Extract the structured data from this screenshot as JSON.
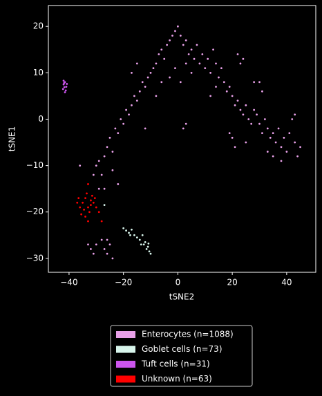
{
  "chart_data": {
    "type": "scatter",
    "xlabel": "tSNE2",
    "ylabel": "tSNE1",
    "xlim": [
      -47.6,
      50.7
    ],
    "ylim": [
      -33.0,
      24.5
    ],
    "xticks": [
      {
        "value": -40,
        "label": "−40"
      },
      {
        "value": -20,
        "label": "−20"
      },
      0,
      20,
      40
    ],
    "yticks": [
      {
        "value": -30,
        "label": "−30"
      },
      {
        "value": -20,
        "label": "−20"
      },
      {
        "value": -10,
        "label": "−10"
      },
      0,
      10,
      20
    ],
    "legend": "below",
    "series": [
      {
        "name": "Enterocytes (n=1088)",
        "color": "#e8a0e8",
        "x": [
          -33,
          -32,
          -31,
          -30,
          -28,
          -27,
          -26,
          -25,
          -24,
          -26,
          -31,
          -30,
          -29,
          -28,
          -27,
          -26,
          -25,
          -24,
          -23,
          -22,
          -21,
          -20,
          -19,
          -18,
          -17,
          -16,
          -15,
          -14,
          -13,
          -12,
          -11,
          -10,
          -9,
          -8,
          -7,
          -6,
          -5,
          -4,
          -3,
          -2,
          -1,
          0,
          1,
          2,
          3,
          4,
          5,
          6,
          7,
          8,
          9,
          10,
          11,
          12,
          13,
          14,
          15,
          16,
          17,
          18,
          19,
          20,
          21,
          22,
          23,
          24,
          25,
          26,
          27,
          28,
          29,
          30,
          31,
          32,
          33,
          34,
          35,
          36,
          37,
          38,
          39,
          40,
          41,
          42,
          43,
          44,
          45,
          43,
          -3,
          -1,
          1,
          3,
          5,
          -22,
          -24,
          -29,
          -27,
          20,
          21,
          19,
          22,
          23,
          24,
          30,
          31,
          25,
          2,
          3,
          -12,
          -36,
          -8,
          -6,
          12,
          14,
          28,
          35,
          38,
          33,
          -17,
          -15
        ],
        "values": [
          -27,
          -28,
          -29,
          -27,
          -26,
          -28,
          -29,
          -27,
          -30,
          -26,
          -12,
          -10,
          -9,
          -12,
          -8,
          -6,
          -4,
          -7,
          -2,
          -3,
          0,
          -1,
          2,
          1,
          3,
          5,
          4,
          6,
          8,
          7,
          9,
          10,
          11,
          12,
          14,
          15,
          13,
          16,
          17,
          18,
          19,
          20,
          18,
          16,
          17,
          14,
          15,
          13,
          16,
          12,
          14,
          11,
          13,
          10,
          15,
          12,
          9,
          11,
          8,
          6,
          7,
          5,
          3,
          4,
          2,
          1,
          3,
          0,
          -1,
          2,
          1,
          -1,
          -3,
          0,
          -2,
          -4,
          -3,
          -5,
          -2,
          -6,
          -4,
          -7,
          -3,
          0,
          1,
          -8,
          -6,
          -5,
          9,
          11,
          8,
          12,
          10,
          -14,
          -11,
          -15,
          -15,
          -4,
          -6,
          -3,
          14,
          12,
          13,
          8,
          6,
          -5,
          -2,
          -1,
          -2,
          -10,
          5,
          8,
          5,
          7,
          8,
          -8,
          -9,
          -7,
          10,
          12
        ]
      },
      {
        "name": "Goblet cells (n=73)",
        "color": "#d8f5ec",
        "x": [
          -20,
          -19,
          -18,
          -17,
          -16,
          -15,
          -14,
          -13,
          -12.5,
          -12,
          -11.5,
          -11,
          -10.5,
          -10,
          -13.5,
          -10.8,
          -27,
          -17.5
        ],
        "values": [
          -23.5,
          -24,
          -24.5,
          -23.8,
          -25,
          -25.5,
          -26,
          -25,
          -27,
          -26.5,
          -28,
          -27.5,
          -28.5,
          -29,
          -27,
          -26.8,
          -18.5,
          -25
        ]
      },
      {
        "name": "Tuft cells (n=31)",
        "color": "#cc55ee",
        "x": [
          -42,
          -41.5,
          -41,
          -42.2,
          -41.8,
          -41.2,
          -42,
          -41.5,
          -40.8,
          -41.7
        ],
        "values": [
          7.5,
          8,
          7,
          6.5,
          7.8,
          6.2,
          8.3,
          5.8,
          7.6,
          6.9
        ]
      },
      {
        "name": "Unknown (n=63)",
        "color": "#ff0000",
        "x": [
          -35,
          -34,
          -33,
          -32,
          -31,
          -34.5,
          -33.5,
          -32.5,
          -36,
          -35.5,
          -31.5,
          -33,
          -36.5,
          -30,
          -29,
          -34,
          -32,
          -33,
          -28,
          -37,
          -30.5
        ],
        "values": [
          -18,
          -17,
          -19,
          -17.5,
          -18,
          -19.5,
          -16,
          -20,
          -19,
          -20.5,
          -16.5,
          -14,
          -17,
          -19,
          -20,
          -21,
          -18.5,
          -22,
          -22,
          -18,
          -17
        ]
      }
    ]
  }
}
